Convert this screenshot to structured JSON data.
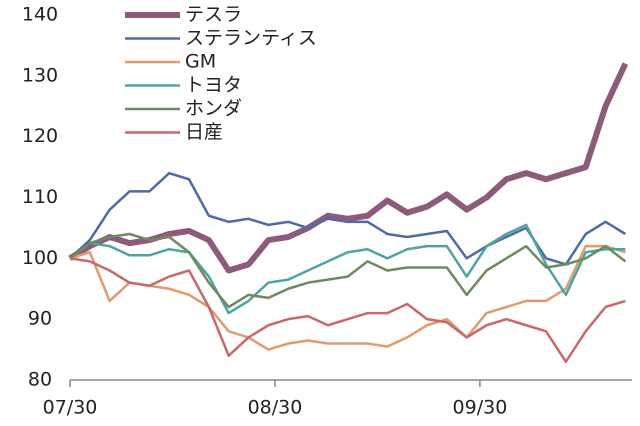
{
  "chart_data": {
    "type": "line",
    "x": [
      0,
      3,
      6,
      9,
      12,
      15,
      18,
      21,
      24,
      27,
      30,
      33,
      36,
      39,
      42,
      45,
      48,
      51,
      54,
      57,
      60,
      63,
      66,
      69,
      72,
      75,
      78,
      81,
      84
    ],
    "xlim": [
      0,
      85
    ],
    "xticks": [
      {
        "value": 0,
        "label": "07/30"
      },
      {
        "value": 31,
        "label": "08/30"
      },
      {
        "value": 62,
        "label": "09/30"
      }
    ],
    "ylim": [
      80,
      140
    ],
    "yticks": [
      80,
      90,
      100,
      110,
      120,
      130,
      140
    ],
    "legend": "upper-left",
    "series": [
      {
        "name": "テスラ",
        "color": "#8e5a7c",
        "width": 6,
        "values": [
          100,
          102,
          103.5,
          102.5,
          103,
          104,
          104.5,
          103,
          98,
          99,
          103,
          103.5,
          105,
          107,
          106.5,
          107,
          109.5,
          107.5,
          108.5,
          110.5,
          108,
          110,
          113,
          114,
          113,
          114,
          115,
          125,
          132
        ]
      },
      {
        "name": "ステランティス",
        "color": "#4f6aa6",
        "width": 2.5,
        "values": [
          100,
          103,
          108,
          111,
          111,
          114,
          113,
          107,
          106,
          106.5,
          105.5,
          106,
          105,
          106.5,
          106,
          106,
          104,
          103.5,
          104,
          104.5,
          100,
          102,
          103.5,
          105,
          100,
          99,
          104,
          106,
          104
        ]
      },
      {
        "name": "GM",
        "color": "#e39a6c",
        "width": 2.5,
        "values": [
          100,
          101,
          93,
          96,
          95.5,
          95,
          94,
          92,
          88,
          87,
          85,
          86,
          86.5,
          86,
          86,
          86,
          85.5,
          87,
          89,
          90,
          87,
          91,
          92,
          93,
          93,
          95,
          102,
          102,
          101
        ]
      },
      {
        "name": "トヨタ",
        "color": "#4ea3a3",
        "width": 2.5,
        "values": [
          100,
          102.5,
          102,
          100.5,
          100.5,
          101.5,
          101,
          97,
          91,
          93,
          96,
          96.5,
          98,
          99.5,
          101,
          101.5,
          100,
          101.5,
          102,
          102,
          97,
          102,
          104,
          105.5,
          99,
          94,
          101,
          101.5,
          101.5
        ]
      },
      {
        "name": "ホンダ",
        "color": "#6e8a5e",
        "width": 2.5,
        "values": [
          100,
          102.5,
          103.5,
          104,
          103,
          103.5,
          101,
          96,
          92,
          94,
          93.5,
          95,
          96,
          96.5,
          97,
          99.5,
          98,
          98.5,
          98.5,
          98.5,
          94,
          98,
          100,
          102,
          98.5,
          99,
          100,
          102,
          99.5
        ]
      },
      {
        "name": "日産",
        "color": "#c9686a",
        "width": 2.5,
        "values": [
          100,
          99.5,
          98,
          96,
          95.5,
          97,
          98,
          92,
          84,
          87,
          89,
          90,
          90.5,
          89,
          90,
          91,
          91,
          92.5,
          90,
          89.5,
          87,
          89,
          90,
          89,
          88,
          83,
          88,
          92,
          93
        ]
      }
    ]
  }
}
